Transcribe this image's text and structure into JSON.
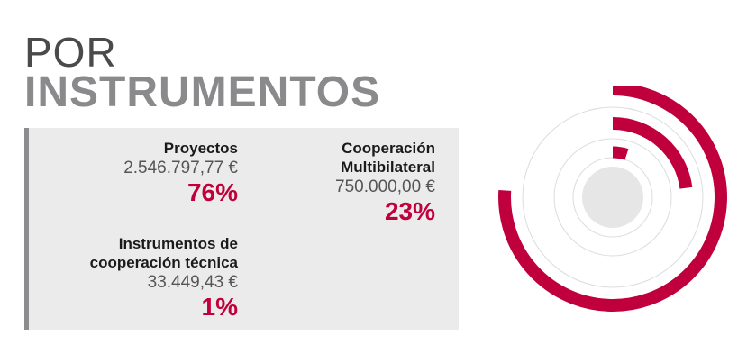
{
  "heading": {
    "line1": "POR",
    "line2": "INSTRUMENTOS"
  },
  "colors": {
    "accent": "#c0003c",
    "ring": "#dcdcdc",
    "center": "#e6e6e7"
  },
  "chart_data": {
    "type": "radial-bar",
    "title": "POR INSTRUMENTOS",
    "series": [
      {
        "name": "Proyectos",
        "amount": "2.546.797,77 €",
        "value": 2546797.77,
        "percent": 76,
        "percent_label": "76%"
      },
      {
        "name": "Cooperación Multibilateral",
        "amount": "750.000,00 €",
        "value": 750000.0,
        "percent": 23,
        "percent_label": "23%"
      },
      {
        "name": "Instrumentos de cooperación técnica",
        "amount": "33.449,43 €",
        "value": 33449.43,
        "percent": 1,
        "percent_label": "1%"
      }
    ]
  },
  "legend": {
    "proyectos": {
      "label": "Proyectos",
      "amount": "2.546.797,77 €",
      "pct": "76%"
    },
    "multibilateral": {
      "label_l1": "Cooperación",
      "label_l2": "Multibilateral",
      "amount": "750.000,00 €",
      "pct": "23%"
    },
    "tecnica": {
      "label_l1": "Instrumentos de",
      "label_l2": "cooperación técnica",
      "amount": "33.449,43 €",
      "pct": "1%"
    }
  }
}
